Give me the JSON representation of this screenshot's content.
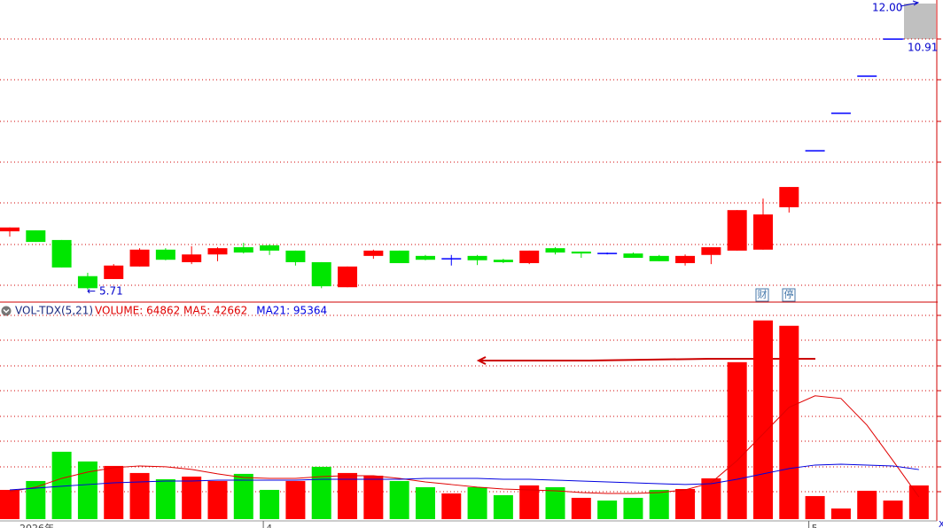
{
  "chart_data": [
    {
      "type": "candlestick",
      "open": [
        6.92,
        6.94,
        6.74,
        5.99,
        5.93,
        6.19,
        6.54,
        6.28,
        6.44,
        6.59,
        6.63,
        6.52,
        6.28,
        5.76,
        6.41,
        6.52,
        6.41,
        6.35,
        6.41,
        6.33,
        6.26,
        6.57,
        6.5,
        6.46,
        6.46,
        6.41,
        6.26,
        6.43,
        6.52,
        6.54,
        7.42,
        8.59,
        9.37,
        10.14,
        10.91,
        null
      ],
      "high": [
        7.0,
        6.94,
        6.74,
        6.06,
        6.24,
        6.57,
        6.57,
        6.61,
        6.59,
        6.68,
        6.65,
        6.52,
        6.28,
        6.19,
        6.54,
        6.52,
        6.43,
        6.43,
        6.43,
        6.35,
        6.52,
        6.59,
        6.5,
        6.48,
        6.48,
        6.43,
        6.44,
        6.59,
        7.36,
        7.6,
        7.84,
        8.59,
        9.37,
        10.14,
        10.91,
        null
      ],
      "low": [
        6.81,
        6.7,
        6.17,
        5.71,
        5.93,
        6.19,
        6.32,
        6.24,
        6.3,
        6.46,
        6.43,
        6.21,
        5.74,
        5.76,
        6.35,
        6.26,
        6.32,
        6.21,
        6.22,
        6.26,
        6.24,
        6.44,
        6.37,
        6.44,
        6.37,
        6.3,
        6.21,
        6.24,
        6.52,
        6.54,
        7.31,
        8.59,
        9.37,
        10.14,
        10.91,
        null
      ],
      "close": [
        7.0,
        6.7,
        6.17,
        5.74,
        6.21,
        6.54,
        6.33,
        6.44,
        6.57,
        6.48,
        6.52,
        6.28,
        5.78,
        6.19,
        6.52,
        6.26,
        6.33,
        6.35,
        6.32,
        6.28,
        6.52,
        6.48,
        6.46,
        6.46,
        6.37,
        6.3,
        6.41,
        6.59,
        7.36,
        7.27,
        7.84,
        8.59,
        9.37,
        10.14,
        10.91,
        null
      ],
      "ylim": [
        5.47,
        11.72
      ],
      "colors": {
        "up": "#ff0000",
        "down": "#00e600",
        "flat": "#0000ff"
      },
      "annotations": [
        "12.00",
        "10.91",
        "5.71"
      ],
      "badges": [
        "财",
        "停"
      ]
    },
    {
      "type": "bar",
      "title": "VOL-TDX(5,21)",
      "volume_label": "VOLUME: 64862",
      "categories": [
        "2026年",
        null,
        null,
        null,
        null,
        null,
        null,
        null,
        null,
        null,
        "4",
        null,
        null,
        null,
        null,
        null,
        null,
        null,
        null,
        null,
        null,
        null,
        null,
        null,
        null,
        null,
        null,
        null,
        null,
        null,
        null,
        "5",
        null,
        null,
        null,
        null
      ],
      "values": [
        56300,
        73400,
        129700,
        111000,
        102400,
        88800,
        76800,
        81900,
        73400,
        87100,
        56300,
        73400,
        100700,
        88800,
        83600,
        73400,
        61500,
        49500,
        61500,
        46100,
        64900,
        61500,
        41000,
        35800,
        41000,
        56300,
        58000,
        78500,
        302100,
        382400,
        372100,
        44400,
        20500,
        54600,
        35800,
        64862
      ],
      "colors": [
        "#ff0000",
        "#00e600",
        "#00e600",
        "#00e600",
        "#ff0000",
        "#ff0000",
        "#00e600",
        "#ff0000",
        "#ff0000",
        "#00e600",
        "#00e600",
        "#ff0000",
        "#00e600",
        "#ff0000",
        "#ff0000",
        "#00e600",
        "#00e600",
        "#ff0000",
        "#00e600",
        "#00e600",
        "#ff0000",
        "#00e600",
        "#ff0000",
        "#00e600",
        "#00e600",
        "#00e600",
        "#ff0000",
        "#ff0000",
        "#ff0000",
        "#ff0000",
        "#ff0000",
        "#ff0000",
        "#ff0000",
        "#ff0000",
        "#ff0000",
        "#ff0000"
      ],
      "ylim": [
        0,
        416000
      ],
      "series": [
        {
          "name": "MA5: 42662",
          "color": "#e00000",
          "values": [
            52900,
            61500,
            78500,
            90500,
            99000,
            102400,
            100700,
            95600,
            87100,
            80200,
            78500,
            78500,
            81900,
            83600,
            83600,
            78500,
            71700,
            66600,
            61500,
            58000,
            56300,
            54600,
            51200,
            49500,
            49500,
            51200,
            56300,
            70000,
            112700,
            163900,
            215100,
            237300,
            232200,
            180900,
            112700,
            42662
          ]
        },
        {
          "name": "MA21: 95364",
          "color": "#0000e0",
          "values": [
            56300,
            59700,
            63200,
            66600,
            70000,
            71700,
            73400,
            73400,
            75100,
            75100,
            75100,
            75100,
            76800,
            76800,
            76800,
            76800,
            78500,
            78500,
            78500,
            76800,
            76800,
            75100,
            73400,
            71700,
            70000,
            68300,
            66600,
            68300,
            76800,
            87100,
            97300,
            104100,
            105800,
            104100,
            102400,
            95364
          ]
        }
      ]
    }
  ]
}
